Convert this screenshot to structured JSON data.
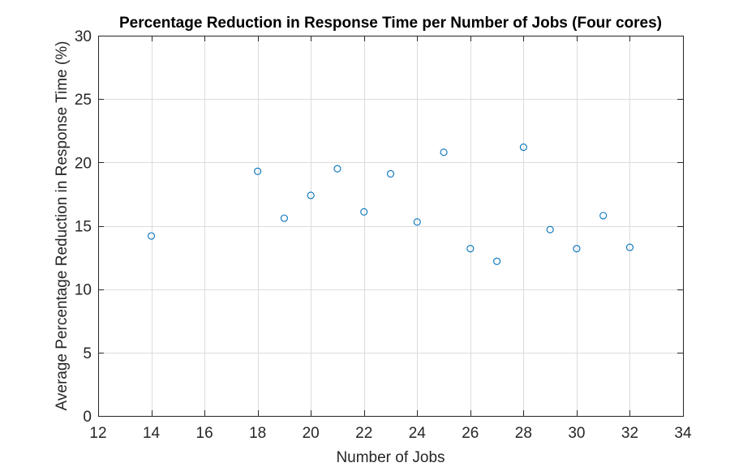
{
  "chart_data": {
    "type": "scatter",
    "title": "Percentage Reduction in Response Time per Number of Jobs (Four cores)",
    "xlabel": "Number of Jobs",
    "ylabel": "Average Percentage Reduction in Response Time (%)",
    "xlim": [
      12,
      34
    ],
    "ylim": [
      0,
      30
    ],
    "xticks": [
      12,
      14,
      16,
      18,
      20,
      22,
      24,
      26,
      28,
      30,
      32,
      34
    ],
    "yticks": [
      0,
      5,
      10,
      15,
      20,
      25,
      30
    ],
    "grid": true,
    "marker": "circle-open",
    "color": "#0072bd",
    "series": [
      {
        "name": "Four cores",
        "x": [
          14,
          18,
          19,
          20,
          21,
          22,
          23,
          24,
          25,
          26,
          27,
          28,
          29,
          30,
          31,
          32
        ],
        "y": [
          14.2,
          19.3,
          15.6,
          17.4,
          19.5,
          16.1,
          19.1,
          15.3,
          20.8,
          13.2,
          12.2,
          21.2,
          14.7,
          13.2,
          15.8,
          13.3
        ]
      }
    ]
  }
}
